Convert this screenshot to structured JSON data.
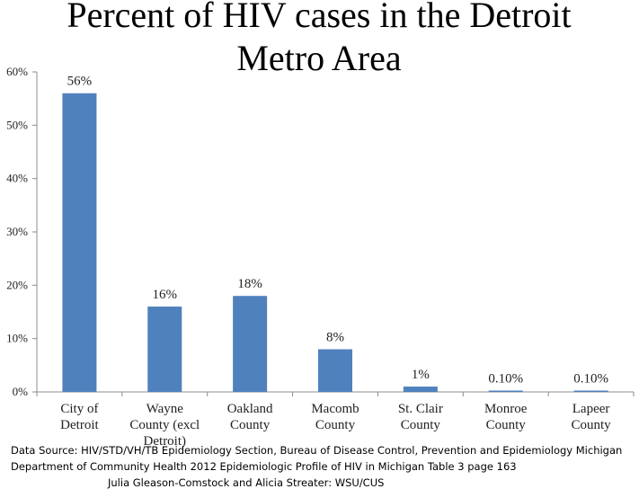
{
  "chart_data": {
    "type": "bar",
    "title": "Percent of HIV cases in the Detroit Metro Area",
    "title_lines": [
      "Percent of HIV cases in the Detroit",
      "Metro Area"
    ],
    "categories": [
      "City of Detroit",
      "Wayne County (excl Detroit)",
      "Oakland County",
      "Macomb County",
      "St. Clair County",
      "Monroe County",
      "Lapeer County"
    ],
    "category_lines": [
      [
        "City of",
        "Detroit"
      ],
      [
        "Wayne",
        "County (excl",
        "Detroit)"
      ],
      [
        "Oakland",
        "County"
      ],
      [
        "Macomb",
        "County"
      ],
      [
        "St. Clair",
        "County"
      ],
      [
        "Monroe",
        "County"
      ],
      [
        "Lapeer",
        "County"
      ]
    ],
    "values": [
      56,
      16,
      18,
      8,
      1,
      0.1,
      0.1
    ],
    "data_labels": [
      "56%",
      "16%",
      "18%",
      "8%",
      "1%",
      "0.10%",
      "0.10%"
    ],
    "y_ticks": [
      0,
      10,
      20,
      30,
      40,
      50,
      60
    ],
    "y_tick_labels": [
      "0%",
      "10%",
      "20%",
      "30%",
      "40%",
      "50%",
      "60%"
    ],
    "ylim": [
      0,
      60
    ],
    "xlabel": "",
    "ylabel": "",
    "grid": false,
    "legend": "none",
    "bar_color": "#4f81bd",
    "axis_color": "#8c8c8c"
  },
  "source": {
    "line1": "Data Source: HIV/STD/VH/TB Epidemiology Section, Bureau of Disease Control, Prevention and Epidemiology Michigan",
    "line2": "Department of Community Health 2012 Epidemiologic Profile of HIV in Michigan Table 3 page 163",
    "line3": "Julia Gleason-Comstock and Alicia Streater: WSU/CUS"
  }
}
